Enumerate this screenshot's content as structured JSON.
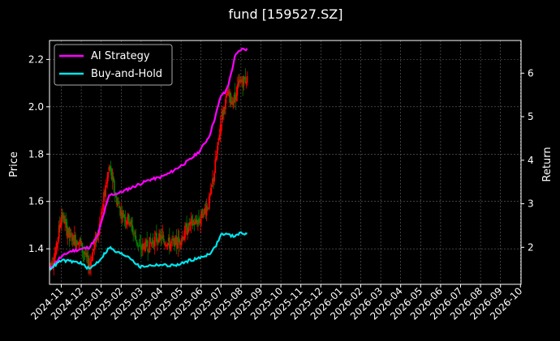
{
  "chart_data": {
    "type": "line",
    "title": "fund [159527.SZ]",
    "ylabel_left": "Price",
    "ylabel_right": "Return",
    "ylim_left": [
      1.25,
      2.28
    ],
    "ylim_right": [
      1.15,
      6.75
    ],
    "yticks_left": [
      "1.4",
      "1.6",
      "1.8",
      "2.0",
      "2.2"
    ],
    "yticks_right": [
      "2",
      "3",
      "4",
      "5",
      "6"
    ],
    "xticks": [
      "2024-11",
      "2024-12",
      "2025-01",
      "2025-02",
      "2025-03",
      "2025-04",
      "2025-05",
      "2025-06",
      "2025-07",
      "2025-08",
      "2025-09",
      "2025-10",
      "2025-11",
      "2025-12",
      "2026-01",
      "2026-02",
      "2026-03",
      "2026-04",
      "2026-05",
      "2026-06",
      "2026-07",
      "2026-08",
      "2026-09",
      "2026-10"
    ],
    "grid": true,
    "legend_position": "top-left",
    "colors": {
      "up": "#ff0000",
      "down": "#008000",
      "ai": "#ff00ff",
      "bh": "#00e5ee",
      "grid": "#666666"
    },
    "price_anchors": {
      "months": [
        0,
        0.3,
        0.6,
        1.0,
        1.5,
        2.0,
        2.5,
        3.0,
        3.3,
        3.6,
        4.0,
        4.5,
        5.0,
        5.5,
        6.0,
        6.5,
        7.0,
        7.5,
        8.0,
        8.3,
        8.6,
        8.9,
        9.2,
        9.5,
        9.9
      ],
      "values": [
        1.33,
        1.38,
        1.55,
        1.45,
        1.43,
        1.33,
        1.5,
        1.75,
        1.62,
        1.55,
        1.52,
        1.4,
        1.42,
        1.45,
        1.42,
        1.43,
        1.5,
        1.52,
        1.6,
        1.75,
        1.95,
        2.05,
        2.02,
        2.1,
        2.12
      ]
    },
    "series": [
      {
        "name": "AI Strategy",
        "x_months": [
          0,
          0.5,
          1.0,
          1.5,
          2.0,
          2.4,
          2.8,
          3.0,
          3.5,
          4.0,
          4.5,
          5.0,
          5.5,
          6.0,
          6.5,
          7.0,
          7.5,
          8.0,
          8.3,
          8.6,
          8.8,
          9.0,
          9.3,
          9.6,
          9.9
        ],
        "y": [
          1.5,
          1.75,
          1.9,
          1.95,
          2.0,
          2.25,
          2.9,
          3.2,
          3.25,
          3.35,
          3.45,
          3.55,
          3.6,
          3.7,
          3.85,
          4.0,
          4.2,
          4.55,
          5.0,
          5.5,
          5.55,
          5.8,
          6.4,
          6.55,
          6.55
        ]
      },
      {
        "name": "Buy-and-Hold",
        "x_months": [
          0,
          0.3,
          0.6,
          1.0,
          1.5,
          2.0,
          2.5,
          3.0,
          3.3,
          3.6,
          4.0,
          4.5,
          5.0,
          5.5,
          6.0,
          6.5,
          7.0,
          7.5,
          8.0,
          8.3,
          8.6,
          8.9,
          9.2,
          9.5,
          9.9
        ],
        "y": [
          1.5,
          1.6,
          1.7,
          1.68,
          1.65,
          1.5,
          1.7,
          2.0,
          1.9,
          1.85,
          1.78,
          1.55,
          1.58,
          1.6,
          1.58,
          1.6,
          1.7,
          1.75,
          1.85,
          2.0,
          2.3,
          2.3,
          2.25,
          2.32,
          2.32
        ]
      }
    ]
  }
}
